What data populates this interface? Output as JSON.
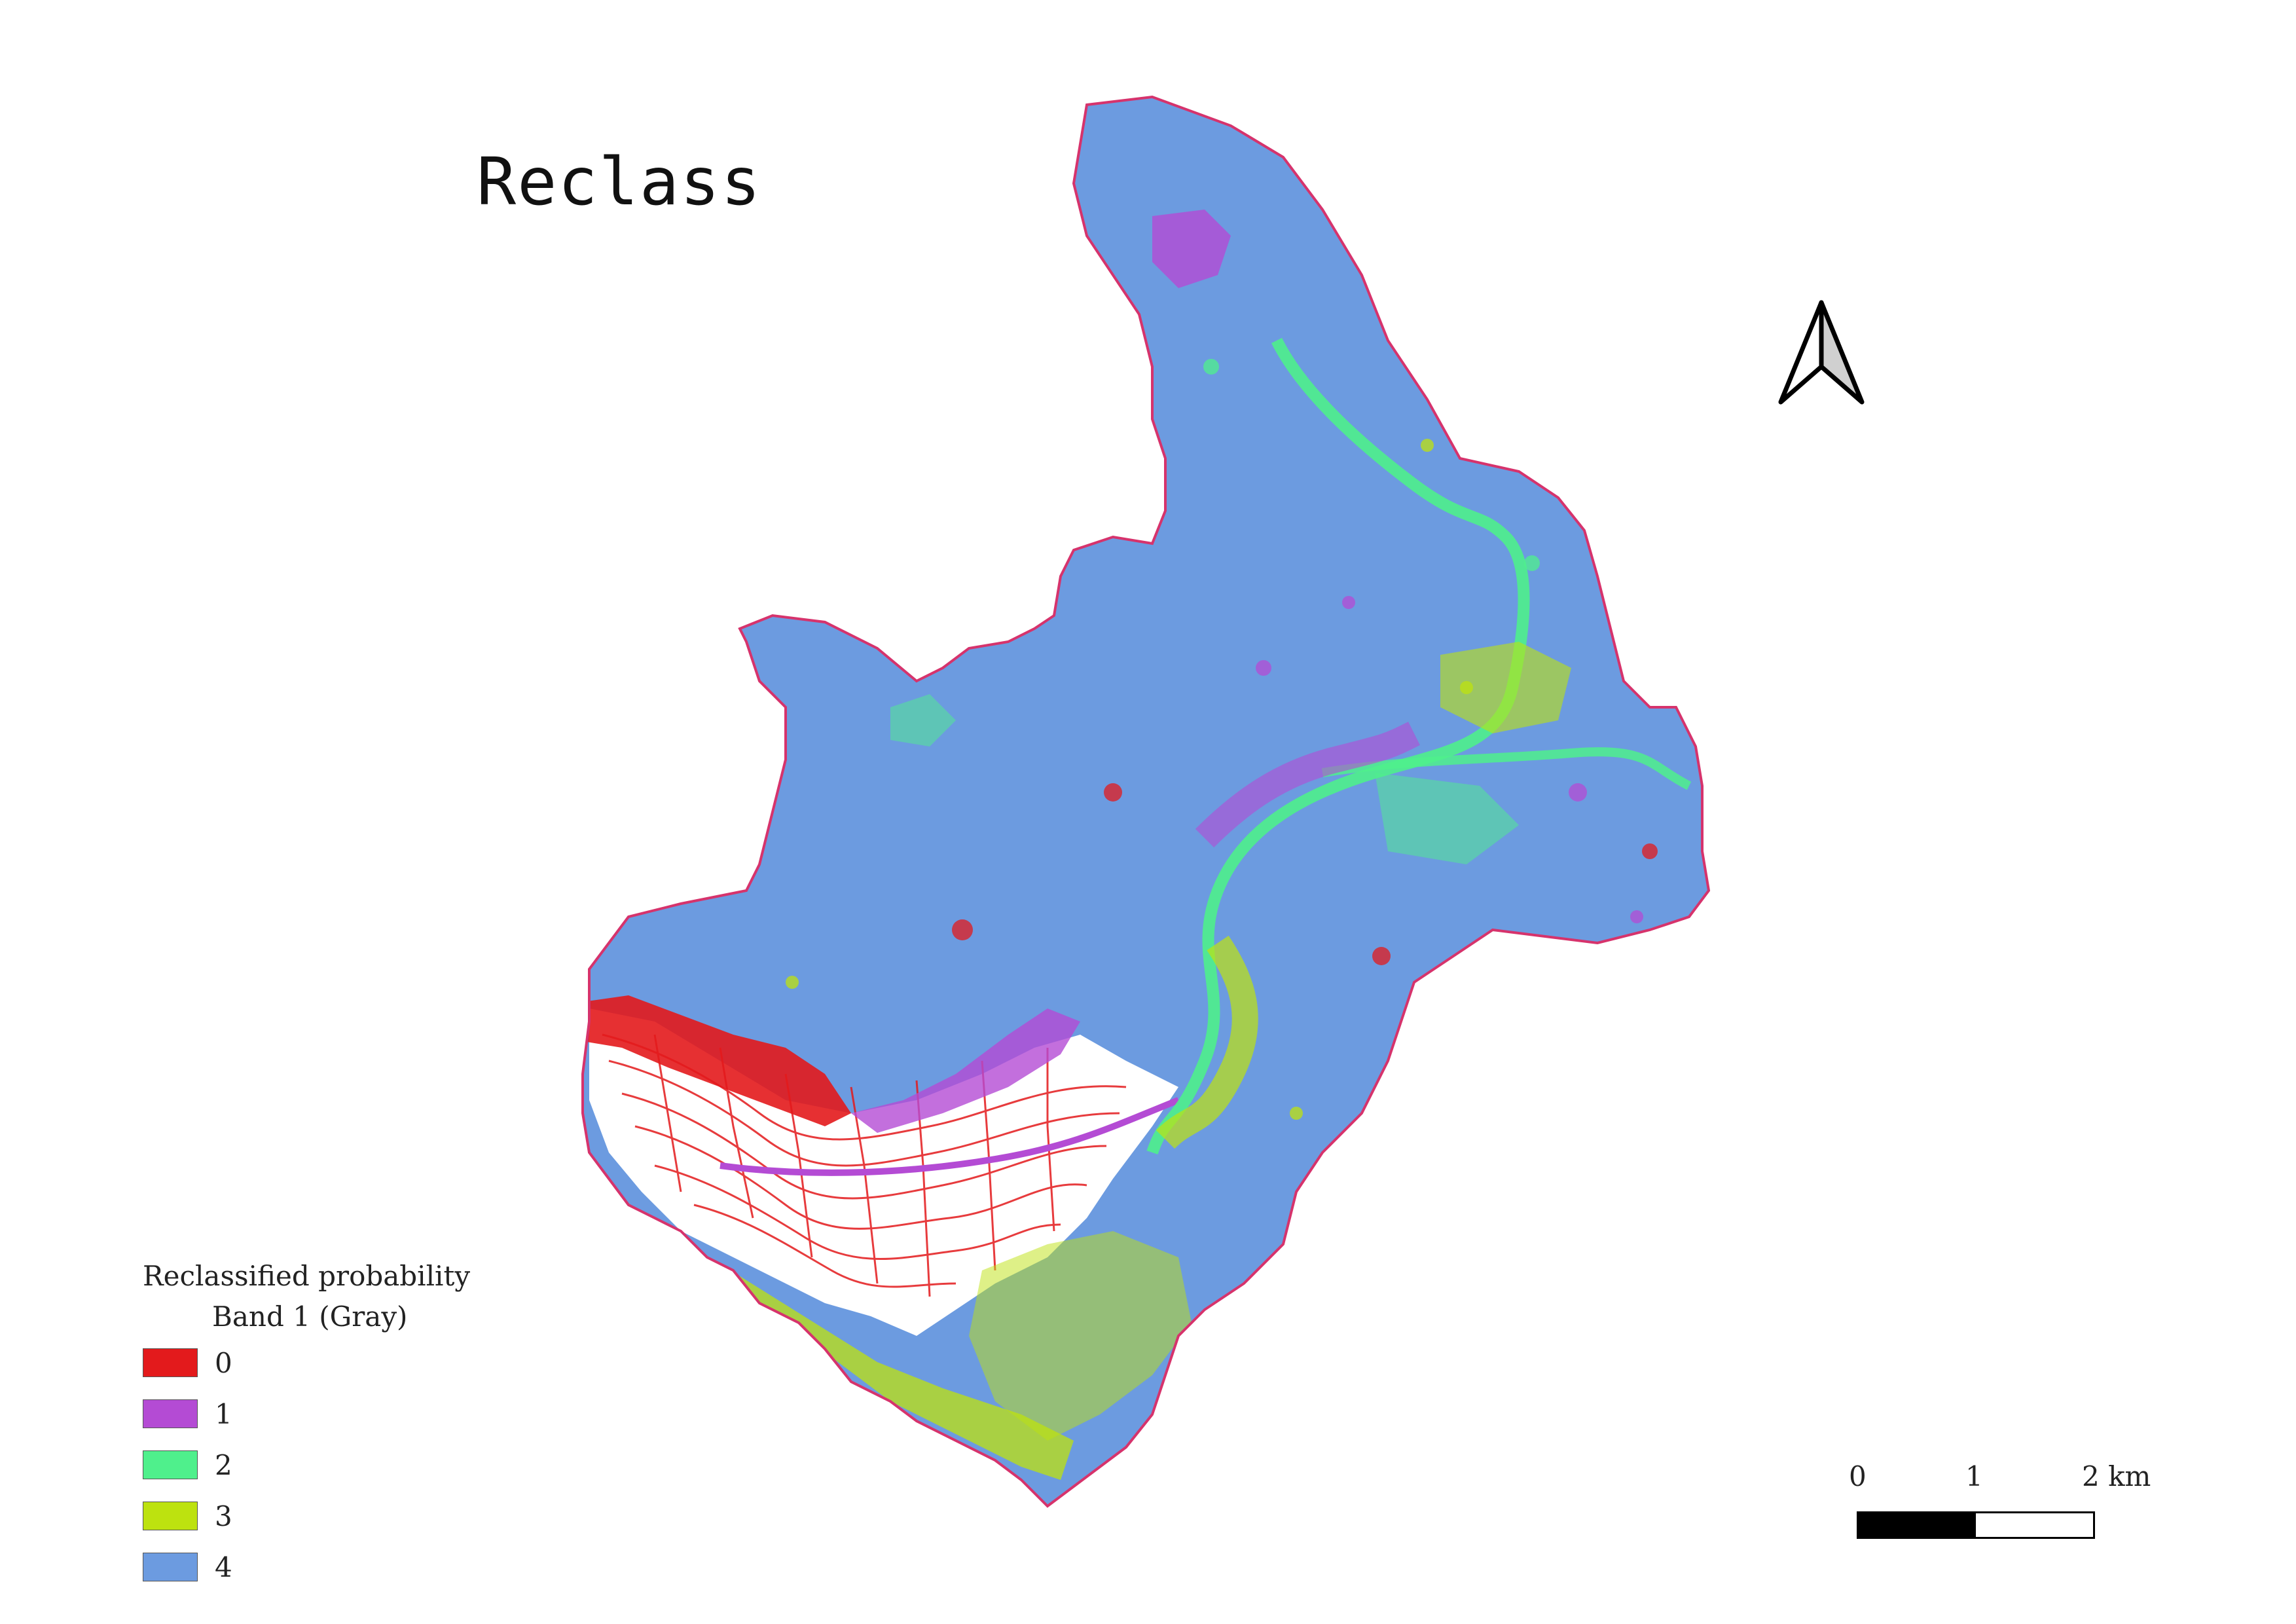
{
  "title": "Reclass",
  "legend": {
    "title": "Reclassified probability",
    "subtitle": "Band 1 (Gray)",
    "classes": [
      {
        "label": "0",
        "color": "#e31a1c"
      },
      {
        "label": "1",
        "color": "#b44bd4"
      },
      {
        "label": "2",
        "color": "#4ff08c"
      },
      {
        "label": "3",
        "color": "#bde20f"
      },
      {
        "label": "4",
        "color": "#6c9be0"
      }
    ]
  },
  "scalebar": {
    "ticks": [
      "0",
      "1",
      "2 km"
    ]
  },
  "colors": {
    "boundary": "#d6336c",
    "valley_white": "#ffffff"
  }
}
